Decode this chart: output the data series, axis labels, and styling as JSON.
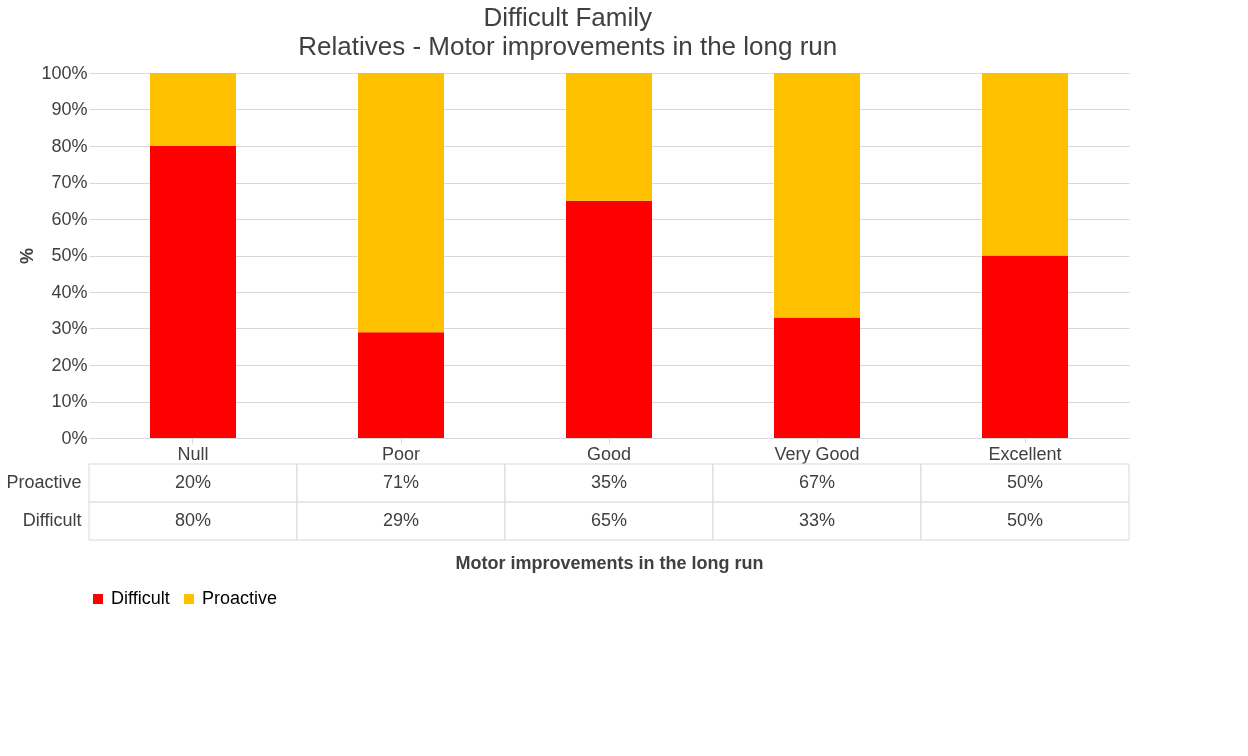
{
  "chart_data": {
    "type": "bar",
    "title": "Difficult Family",
    "subtitle": "Relatives - Motor improvements in the long run",
    "xlabel": "Motor improvements in the long run",
    "ylabel": "%",
    "categories": [
      "Null",
      "Poor",
      "Good",
      "Very Good",
      "Excellent"
    ],
    "series": [
      {
        "name": "Difficult",
        "color": "#ff0000",
        "values": [
          80,
          29,
          65,
          33,
          50
        ],
        "value_labels": [
          "80%",
          "29%",
          "65%",
          "33%",
          "50%"
        ]
      },
      {
        "name": "Proactive",
        "color": "#ffc000",
        "values": [
          20,
          71,
          35,
          67,
          50
        ],
        "value_labels": [
          "20%",
          "71%",
          "35%",
          "67%",
          "50%"
        ]
      }
    ],
    "stacked": true,
    "ylim": [
      0,
      100
    ],
    "yticks": [
      {
        "value": 0,
        "label": "0%"
      },
      {
        "value": 10,
        "label": "10%"
      },
      {
        "value": 20,
        "label": "20%"
      },
      {
        "value": 30,
        "label": "30%"
      },
      {
        "value": 40,
        "label": "40%"
      },
      {
        "value": 50,
        "label": "50%"
      },
      {
        "value": 60,
        "label": "60%"
      },
      {
        "value": 70,
        "label": "70%"
      },
      {
        "value": 80,
        "label": "80%"
      },
      {
        "value": 90,
        "label": "90%"
      },
      {
        "value": 100,
        "label": "100%"
      }
    ],
    "grid": "y",
    "legend": "bottom"
  }
}
